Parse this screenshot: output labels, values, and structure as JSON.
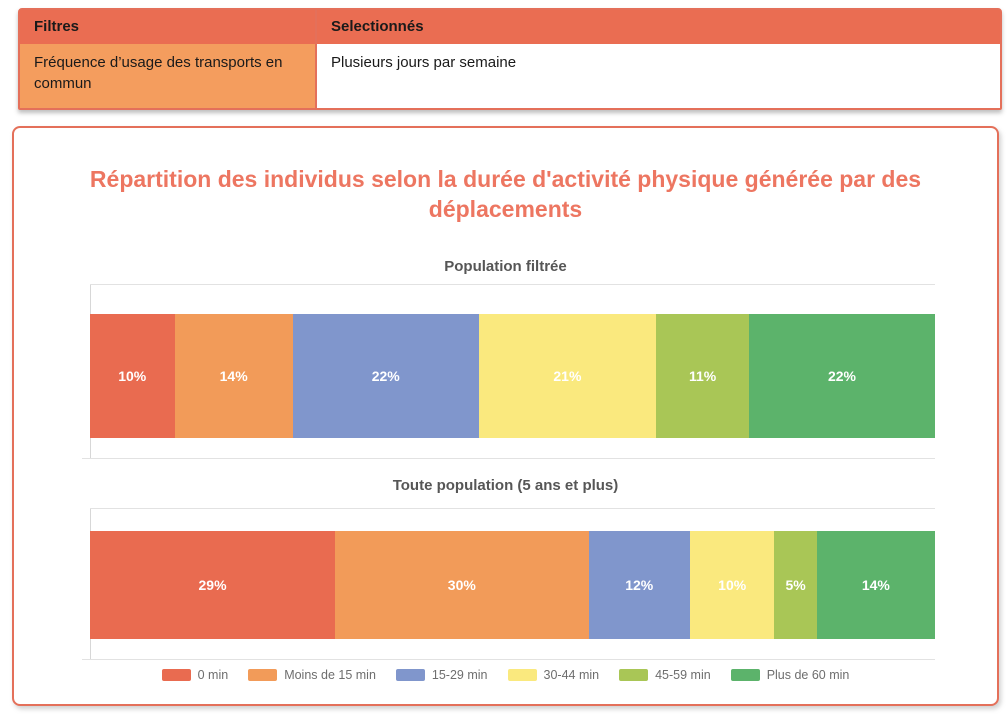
{
  "colors": {
    "accent_salmon": "#EA6D52",
    "accent_orange": "#F49D5E",
    "panel_border": "#E4705A",
    "title_text": "#ED7661",
    "subtitle_text": "#565656",
    "legend_text": "#6E6E6E",
    "gridline": "#E2E2E2"
  },
  "filters_table": {
    "headers": {
      "filters": "Filtres",
      "selected": "Selectionnés"
    },
    "rows": [
      {
        "filter": "Fréquence d’usage des transports en commun",
        "selected": "Plusieurs jours par semaine"
      }
    ]
  },
  "chart_data": {
    "type": "bar",
    "stacked": true,
    "orientation": "horizontal",
    "unit": "%",
    "title": "Répartition des individus selon la durée d'activité physique générée par des déplacements",
    "categories": [
      "0 min",
      "Moins de 15 min",
      "15-29 min",
      "30-44 min",
      "45-59 min",
      "Plus de 60 min"
    ],
    "colors": [
      "#E96B50",
      "#F29B59",
      "#8096CC",
      "#FAE97E",
      "#A9C656",
      "#5CB36B"
    ],
    "series": [
      {
        "name": "Population filtrée",
        "values": [
          10,
          14,
          22,
          21,
          11,
          22
        ]
      },
      {
        "name": "Toute population (5 ans et plus)",
        "values": [
          29,
          30,
          12,
          10,
          5,
          14
        ]
      }
    ],
    "xlim": [
      0,
      100
    ],
    "value_labels": "inside-white-bold",
    "legend_position": "bottom",
    "grid": "top-and-bottom-lines-only"
  }
}
